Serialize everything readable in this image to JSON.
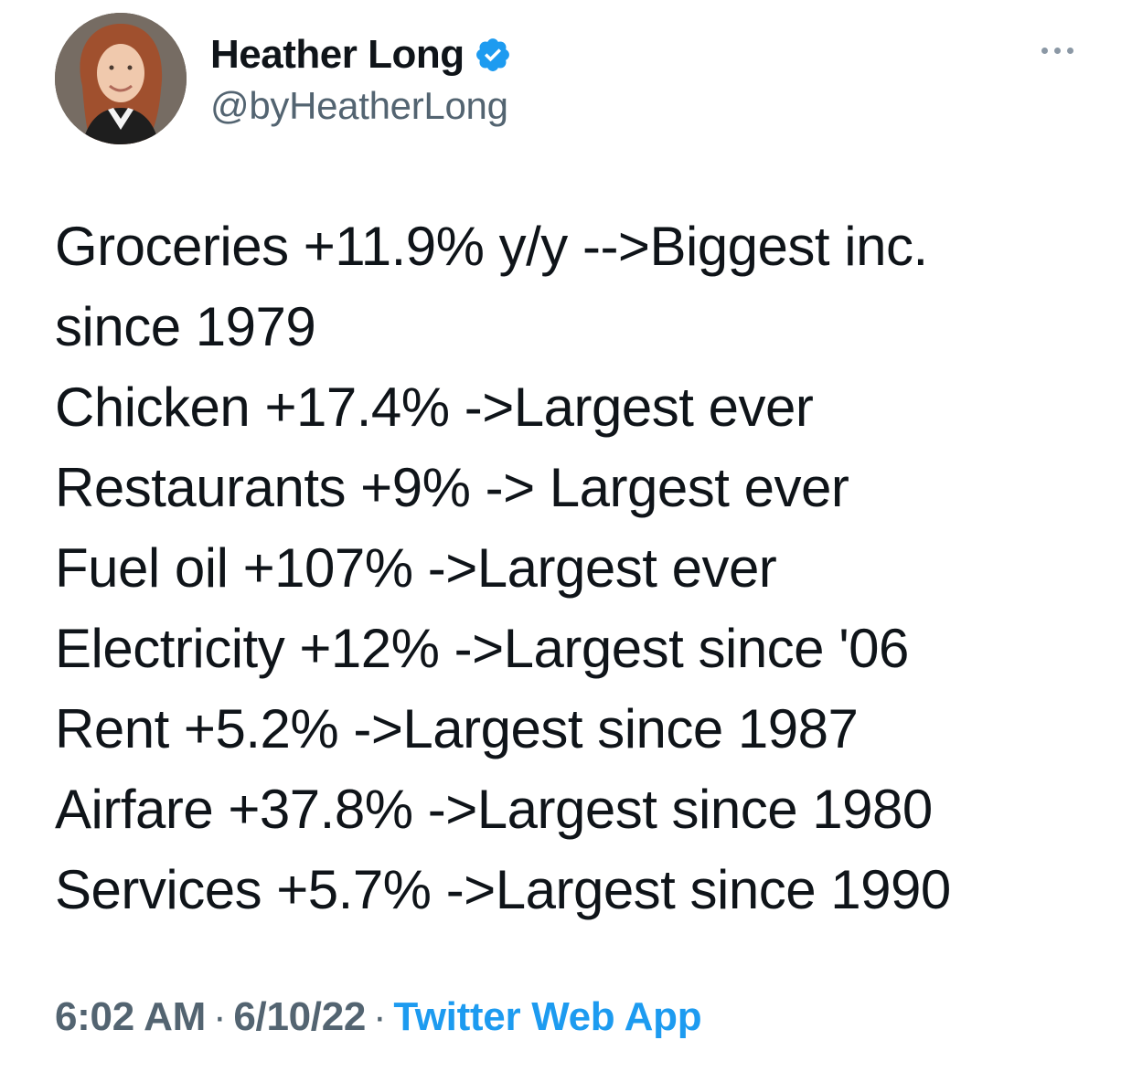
{
  "author": {
    "display_name": "Heather Long",
    "handle": "@byHeatherLong",
    "verified": true
  },
  "tweet": {
    "lines": [
      "Groceries +11.9% y/y -->Biggest inc.",
      "since 1979",
      "Chicken +17.4% ->Largest ever",
      "Restaurants +9% -> Largest ever",
      "Fuel oil +107% ->Largest ever",
      "Electricity +12% ->Largest since '06",
      "Rent +5.2% ->Largest since 1987",
      "Airfare +37.8% ->Largest since 1980",
      "Services +5.7% ->Largest since 1990"
    ]
  },
  "meta": {
    "time": "6:02 AM",
    "separator": "·",
    "date": "6/10/22",
    "source": "Twitter Web App"
  },
  "colors": {
    "text": "#0f1419",
    "secondary": "#536471",
    "accent": "#1d9bf0"
  },
  "icons": {
    "verified": "verified-badge-icon",
    "more": "more-options-icon"
  }
}
